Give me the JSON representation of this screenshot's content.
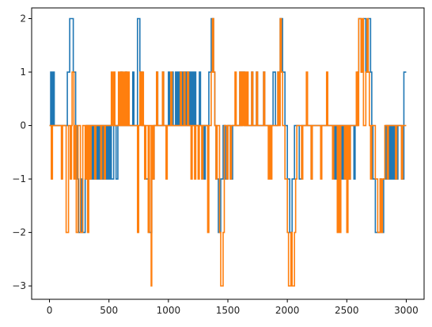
{
  "chart_data": {
    "type": "line",
    "title": "",
    "xlabel": "",
    "ylabel": "",
    "xlim": [
      -150,
      3150
    ],
    "ylim": [
      -3.25,
      2.2
    ],
    "xticks": [
      0,
      500,
      1000,
      1500,
      2000,
      2500,
      3000
    ],
    "yticks": [
      2,
      1,
      0,
      -1,
      -2,
      -3
    ],
    "grid": false,
    "legend": "none",
    "step": "post",
    "series": [
      {
        "color": "#1f77b4",
        "segments": [
          [
            0,
            0
          ],
          [
            10,
            1
          ],
          [
            15,
            0
          ],
          [
            20,
            1
          ],
          [
            25,
            0
          ],
          [
            30,
            1
          ],
          [
            40,
            0
          ],
          [
            150,
            1
          ],
          [
            170,
            2
          ],
          [
            200,
            1
          ],
          [
            220,
            0
          ],
          [
            230,
            -1
          ],
          [
            245,
            -2
          ],
          [
            270,
            -1
          ],
          [
            280,
            -2
          ],
          [
            300,
            -1
          ],
          [
            310,
            0
          ],
          [
            320,
            -1
          ],
          [
            330,
            0
          ],
          [
            340,
            -1
          ],
          [
            350,
            0
          ],
          [
            360,
            -1
          ],
          [
            370,
            0
          ],
          [
            380,
            -1
          ],
          [
            390,
            0
          ],
          [
            400,
            -1
          ],
          [
            410,
            0
          ],
          [
            420,
            -1
          ],
          [
            430,
            0
          ],
          [
            440,
            -1
          ],
          [
            450,
            0
          ],
          [
            460,
            -1
          ],
          [
            470,
            0
          ],
          [
            480,
            -1
          ],
          [
            490,
            0
          ],
          [
            500,
            -1
          ],
          [
            510,
            0
          ],
          [
            520,
            -1
          ],
          [
            540,
            0
          ],
          [
            560,
            -1
          ],
          [
            575,
            0
          ],
          [
            600,
            1
          ],
          [
            610,
            0
          ],
          [
            640,
            1
          ],
          [
            650,
            0
          ],
          [
            700,
            1
          ],
          [
            710,
            0
          ],
          [
            740,
            2
          ],
          [
            760,
            1
          ],
          [
            780,
            0
          ],
          [
            800,
            -1
          ],
          [
            840,
            -2
          ],
          [
            860,
            -1
          ],
          [
            880,
            0
          ],
          [
            900,
            1
          ],
          [
            910,
            0
          ],
          [
            950,
            1
          ],
          [
            960,
            0
          ],
          [
            1000,
            1
          ],
          [
            1010,
            0
          ],
          [
            1030,
            1
          ],
          [
            1040,
            0
          ],
          [
            1060,
            1
          ],
          [
            1070,
            0
          ],
          [
            1080,
            1
          ],
          [
            1090,
            0
          ],
          [
            1100,
            1
          ],
          [
            1110,
            0
          ],
          [
            1120,
            1
          ],
          [
            1130,
            0
          ],
          [
            1140,
            1
          ],
          [
            1150,
            0
          ],
          [
            1160,
            1
          ],
          [
            1170,
            0
          ],
          [
            1180,
            1
          ],
          [
            1190,
            0
          ],
          [
            1200,
            1
          ],
          [
            1210,
            0
          ],
          [
            1220,
            1
          ],
          [
            1230,
            0
          ],
          [
            1260,
            1
          ],
          [
            1270,
            0
          ],
          [
            1300,
            -1
          ],
          [
            1310,
            0
          ],
          [
            1340,
            1
          ],
          [
            1360,
            2
          ],
          [
            1380,
            1
          ],
          [
            1390,
            0
          ],
          [
            1400,
            -1
          ],
          [
            1420,
            -2
          ],
          [
            1440,
            -1
          ],
          [
            1460,
            0
          ],
          [
            1480,
            -1
          ],
          [
            1500,
            0
          ],
          [
            1520,
            -1
          ],
          [
            1540,
            0
          ],
          [
            1600,
            1
          ],
          [
            1610,
            0
          ],
          [
            1620,
            1
          ],
          [
            1640,
            0
          ],
          [
            1700,
            1
          ],
          [
            1710,
            0
          ],
          [
            1740,
            1
          ],
          [
            1750,
            0
          ],
          [
            1800,
            1
          ],
          [
            1810,
            0
          ],
          [
            1880,
            1
          ],
          [
            1900,
            0
          ],
          [
            1920,
            1
          ],
          [
            1940,
            2
          ],
          [
            1960,
            1
          ],
          [
            1980,
            0
          ],
          [
            2000,
            -1
          ],
          [
            2020,
            -2
          ],
          [
            2040,
            -1
          ],
          [
            2060,
            0
          ],
          [
            2100,
            -1
          ],
          [
            2120,
            0
          ],
          [
            2200,
            -1
          ],
          [
            2210,
            0
          ],
          [
            2400,
            -1
          ],
          [
            2410,
            0
          ],
          [
            2420,
            -1
          ],
          [
            2430,
            0
          ],
          [
            2440,
            -1
          ],
          [
            2450,
            0
          ],
          [
            2460,
            -1
          ],
          [
            2470,
            0
          ],
          [
            2480,
            -1
          ],
          [
            2490,
            0
          ],
          [
            2520,
            -1
          ],
          [
            2530,
            0
          ],
          [
            2560,
            -1
          ],
          [
            2570,
            0
          ],
          [
            2590,
            1
          ],
          [
            2600,
            2
          ],
          [
            2620,
            1
          ],
          [
            2640,
            2
          ],
          [
            2660,
            1
          ],
          [
            2680,
            2
          ],
          [
            2700,
            1
          ],
          [
            2710,
            0
          ],
          [
            2720,
            -1
          ],
          [
            2740,
            -2
          ],
          [
            2780,
            -1
          ],
          [
            2790,
            -2
          ],
          [
            2810,
            -1
          ],
          [
            2830,
            0
          ],
          [
            2840,
            -1
          ],
          [
            2850,
            0
          ],
          [
            2860,
            -1
          ],
          [
            2870,
            0
          ],
          [
            2880,
            -1
          ],
          [
            2890,
            0
          ],
          [
            2900,
            -1
          ],
          [
            2910,
            0
          ],
          [
            2920,
            -1
          ],
          [
            2930,
            0
          ],
          [
            2960,
            -1
          ],
          [
            2980,
            1
          ],
          [
            3000,
            1
          ]
        ]
      },
      {
        "color": "#ff7f0e",
        "segments": [
          [
            0,
            0
          ],
          [
            15,
            -1
          ],
          [
            25,
            0
          ],
          [
            100,
            -1
          ],
          [
            110,
            0
          ],
          [
            140,
            -2
          ],
          [
            160,
            0
          ],
          [
            175,
            -1
          ],
          [
            185,
            0
          ],
          [
            190,
            1
          ],
          [
            205,
            -1
          ],
          [
            215,
            0
          ],
          [
            225,
            -2
          ],
          [
            240,
            0
          ],
          [
            260,
            -2
          ],
          [
            280,
            0
          ],
          [
            300,
            -1
          ],
          [
            310,
            0
          ],
          [
            320,
            -2
          ],
          [
            330,
            0
          ],
          [
            340,
            -1
          ],
          [
            350,
            0
          ],
          [
            380,
            -1
          ],
          [
            390,
            0
          ],
          [
            430,
            -1
          ],
          [
            440,
            0
          ],
          [
            460,
            -1
          ],
          [
            470,
            0
          ],
          [
            500,
            0
          ],
          [
            520,
            1
          ],
          [
            530,
            0
          ],
          [
            540,
            1
          ],
          [
            550,
            0
          ],
          [
            580,
            1
          ],
          [
            590,
            0
          ],
          [
            600,
            1
          ],
          [
            610,
            0
          ],
          [
            620,
            1
          ],
          [
            630,
            0
          ],
          [
            640,
            1
          ],
          [
            650,
            0
          ],
          [
            660,
            1
          ],
          [
            670,
            0
          ],
          [
            740,
            -2
          ],
          [
            750,
            0
          ],
          [
            760,
            1
          ],
          [
            770,
            0
          ],
          [
            780,
            1
          ],
          [
            790,
            0
          ],
          [
            800,
            -1
          ],
          [
            810,
            0
          ],
          [
            830,
            -2
          ],
          [
            840,
            0
          ],
          [
            855,
            -3
          ],
          [
            860,
            0
          ],
          [
            870,
            -1
          ],
          [
            880,
            0
          ],
          [
            900,
            1
          ],
          [
            910,
            0
          ],
          [
            950,
            1
          ],
          [
            960,
            0
          ],
          [
            980,
            -1
          ],
          [
            990,
            0
          ],
          [
            1020,
            1
          ],
          [
            1030,
            0
          ],
          [
            1100,
            1
          ],
          [
            1110,
            0
          ],
          [
            1130,
            1
          ],
          [
            1140,
            0
          ],
          [
            1160,
            1
          ],
          [
            1170,
            0
          ],
          [
            1190,
            -1
          ],
          [
            1200,
            0
          ],
          [
            1220,
            -1
          ],
          [
            1230,
            0
          ],
          [
            1250,
            -1
          ],
          [
            1260,
            0
          ],
          [
            1280,
            -1
          ],
          [
            1290,
            0
          ],
          [
            1330,
            -2
          ],
          [
            1340,
            0
          ],
          [
            1360,
            1
          ],
          [
            1370,
            2
          ],
          [
            1380,
            1
          ],
          [
            1390,
            0
          ],
          [
            1400,
            -1
          ],
          [
            1410,
            0
          ],
          [
            1430,
            -2
          ],
          [
            1440,
            -3
          ],
          [
            1460,
            -2
          ],
          [
            1470,
            0
          ],
          [
            1490,
            -1
          ],
          [
            1500,
            0
          ],
          [
            1520,
            -1
          ],
          [
            1530,
            0
          ],
          [
            1560,
            1
          ],
          [
            1570,
            0
          ],
          [
            1600,
            1
          ],
          [
            1610,
            0
          ],
          [
            1620,
            1
          ],
          [
            1630,
            0
          ],
          [
            1640,
            1
          ],
          [
            1650,
            0
          ],
          [
            1660,
            1
          ],
          [
            1670,
            0
          ],
          [
            1700,
            1
          ],
          [
            1710,
            0
          ],
          [
            1740,
            1
          ],
          [
            1750,
            0
          ],
          [
            1800,
            1
          ],
          [
            1810,
            0
          ],
          [
            1840,
            -1
          ],
          [
            1850,
            0
          ],
          [
            1860,
            -1
          ],
          [
            1870,
            0
          ],
          [
            1920,
            1
          ],
          [
            1930,
            0
          ],
          [
            1940,
            2
          ],
          [
            1950,
            1
          ],
          [
            1960,
            0
          ],
          [
            1980,
            -1
          ],
          [
            2000,
            -2
          ],
          [
            2010,
            -3
          ],
          [
            2030,
            -2
          ],
          [
            2040,
            -3
          ],
          [
            2060,
            -2
          ],
          [
            2070,
            -1
          ],
          [
            2080,
            0
          ],
          [
            2120,
            -1
          ],
          [
            2130,
            0
          ],
          [
            2160,
            1
          ],
          [
            2170,
            0
          ],
          [
            2200,
            -1
          ],
          [
            2210,
            0
          ],
          [
            2280,
            -1
          ],
          [
            2290,
            0
          ],
          [
            2330,
            1
          ],
          [
            2340,
            0
          ],
          [
            2380,
            -1
          ],
          [
            2390,
            0
          ],
          [
            2420,
            -2
          ],
          [
            2430,
            0
          ],
          [
            2440,
            -2
          ],
          [
            2450,
            0
          ],
          [
            2480,
            -1
          ],
          [
            2490,
            0
          ],
          [
            2500,
            -2
          ],
          [
            2510,
            0
          ],
          [
            2520,
            -1
          ],
          [
            2530,
            0
          ],
          [
            2580,
            1
          ],
          [
            2590,
            0
          ],
          [
            2600,
            2
          ],
          [
            2620,
            1
          ],
          [
            2630,
            2
          ],
          [
            2640,
            0
          ],
          [
            2660,
            1
          ],
          [
            2670,
            2
          ],
          [
            2680,
            1
          ],
          [
            2690,
            0
          ],
          [
            2700,
            -1
          ],
          [
            2710,
            0
          ],
          [
            2740,
            -1
          ],
          [
            2760,
            -2
          ],
          [
            2780,
            -1
          ],
          [
            2790,
            -2
          ],
          [
            2800,
            -1
          ],
          [
            2820,
            0
          ],
          [
            2840,
            -1
          ],
          [
            2850,
            0
          ],
          [
            2900,
            0
          ],
          [
            2910,
            -1
          ],
          [
            2920,
            0
          ],
          [
            2960,
            -1
          ],
          [
            2970,
            0
          ],
          [
            3000,
            0
          ]
        ]
      }
    ]
  }
}
